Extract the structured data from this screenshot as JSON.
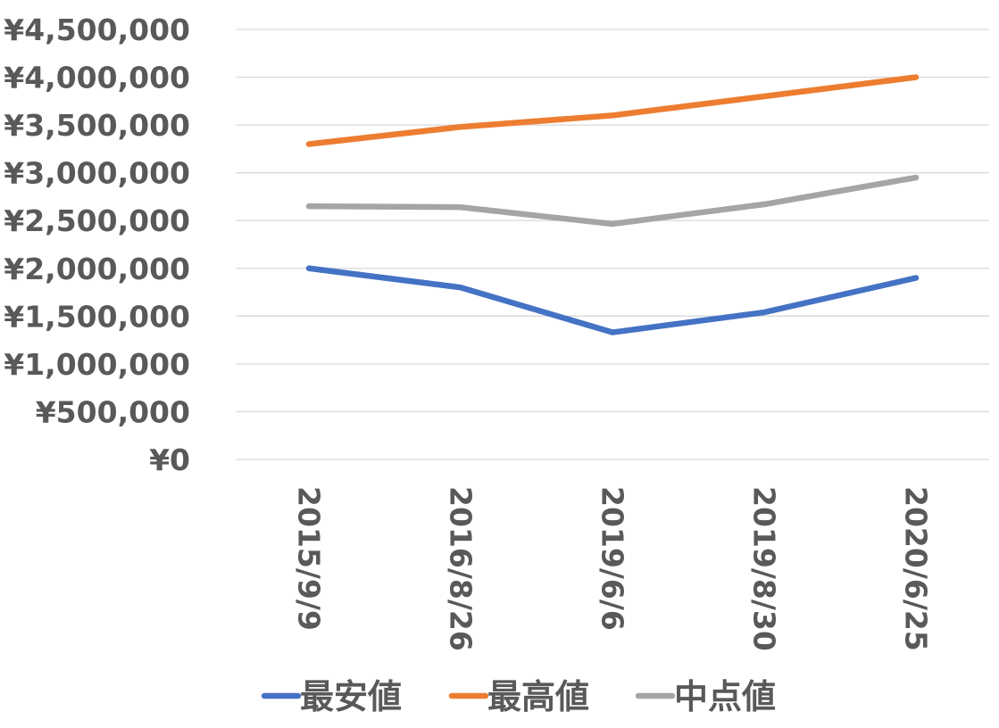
{
  "chart_data": {
    "type": "line",
    "title": "",
    "xlabel": "",
    "ylabel": "",
    "categories": [
      "2015/9/9",
      "2016/8/26",
      "2019/6/6",
      "2019/8/30",
      "2020/6/25"
    ],
    "ylim": [
      0,
      4500000
    ],
    "yticks": [
      0,
      500000,
      1000000,
      1500000,
      2000000,
      2500000,
      3000000,
      3500000,
      4000000,
      4500000
    ],
    "ytick_labels": [
      "¥0",
      "¥500,000",
      "¥1,000,000",
      "¥1,500,000",
      "¥2,000,000",
      "¥2,500,000",
      "¥3,000,000",
      "¥3,500,000",
      "¥4,000,000",
      "¥4,500,000"
    ],
    "grid": true,
    "legend_position": "bottom",
    "series": [
      {
        "name": "最安値",
        "color": "#4472C4",
        "values": [
          2000000,
          1800000,
          1330000,
          1540000,
          1900000
        ]
      },
      {
        "name": "最高値",
        "color": "#ED7D31",
        "values": [
          3300000,
          3480000,
          3600000,
          3800000,
          4000000
        ]
      },
      {
        "name": "中点値",
        "color": "#A5A5A5",
        "values": [
          2650000,
          2640000,
          2465000,
          2670000,
          2950000
        ]
      }
    ]
  }
}
